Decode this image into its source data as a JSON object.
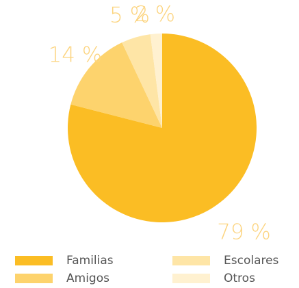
{
  "chart_data": {
    "type": "pie",
    "categories": [
      "Familias",
      "Amigos",
      "Escolares",
      "Otros"
    ],
    "values": [
      79,
      14,
      5,
      2
    ],
    "value_labels": [
      "79 %",
      "14 %",
      "5 %",
      "2 %"
    ],
    "colors": [
      "#fbbd24",
      "#fdd36d",
      "#fee5a6",
      "#fff1d0"
    ]
  }
}
